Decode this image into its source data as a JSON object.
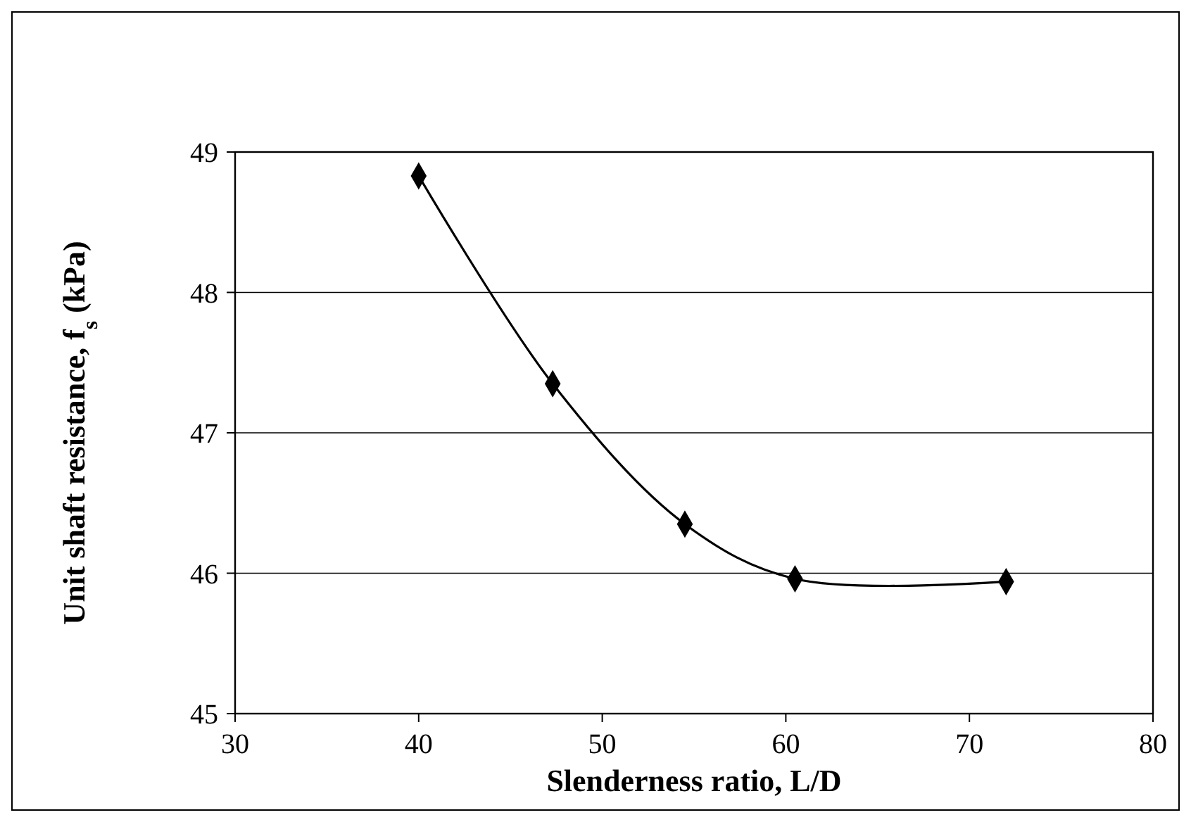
{
  "chart_data": {
    "type": "line",
    "xlabel": "Slenderness ratio, L/D",
    "ylabel": "Unit shaft resistance, f$_{s}$ (kPa)",
    "x": [
      40,
      47.3,
      54.5,
      60.5,
      72
    ],
    "series": [
      {
        "color": "#000000",
        "values": [
          48.83,
          47.35,
          46.35,
          45.96,
          45.94
        ]
      }
    ],
    "xlim": [
      30,
      80
    ],
    "xticks": [
      30,
      40,
      50,
      60,
      70,
      80
    ],
    "ylim": [
      45,
      49
    ],
    "yticks": [
      45,
      46,
      47,
      48,
      49
    ],
    "grid": "y",
    "marker": "diamond",
    "line_style": "solid"
  }
}
